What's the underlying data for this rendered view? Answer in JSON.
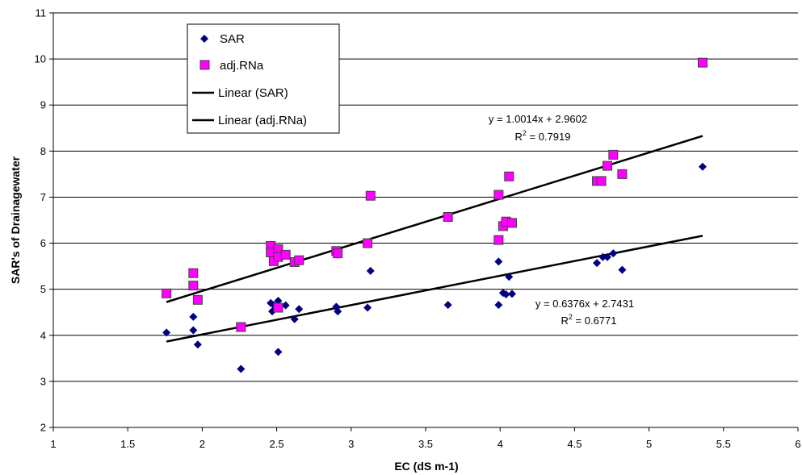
{
  "chart_data": {
    "type": "scatter",
    "title": "",
    "xlabel": "EC (dS m-1)",
    "ylabel": "SAR's of Drainagewater",
    "xlim": [
      1,
      6
    ],
    "ylim": [
      2,
      11
    ],
    "x_ticks": [
      "1",
      "1.5",
      "2",
      "2.5",
      "3",
      "3.5",
      "4",
      "4.5",
      "5",
      "5.5",
      "6"
    ],
    "y_ticks": [
      "2",
      "3",
      "4",
      "5",
      "6",
      "7",
      "8",
      "9",
      "10",
      "11"
    ],
    "grid": "horizontal",
    "legend_position": "top-left",
    "series": [
      {
        "name": "SAR",
        "marker": "diamond",
        "color": "#000080",
        "points": [
          [
            1.76,
            4.06
          ],
          [
            1.94,
            4.4
          ],
          [
            1.94,
            4.11
          ],
          [
            1.97,
            3.8
          ],
          [
            2.26,
            3.27
          ],
          [
            2.46,
            4.7
          ],
          [
            2.47,
            4.52
          ],
          [
            2.48,
            4.66
          ],
          [
            2.51,
            4.75
          ],
          [
            2.51,
            4.6
          ],
          [
            2.51,
            3.64
          ],
          [
            2.56,
            4.65
          ],
          [
            2.62,
            4.35
          ],
          [
            2.65,
            4.57
          ],
          [
            2.9,
            4.62
          ],
          [
            2.91,
            4.52
          ],
          [
            3.11,
            4.6
          ],
          [
            3.13,
            5.4
          ],
          [
            3.65,
            4.66
          ],
          [
            3.99,
            5.6
          ],
          [
            3.99,
            4.66
          ],
          [
            4.02,
            4.92
          ],
          [
            4.04,
            4.89
          ],
          [
            4.06,
            5.27
          ],
          [
            4.08,
            4.9
          ],
          [
            4.65,
            5.57
          ],
          [
            4.69,
            5.7
          ],
          [
            4.72,
            5.7
          ],
          [
            4.76,
            5.78
          ],
          [
            4.82,
            5.42
          ],
          [
            5.36,
            7.66
          ]
        ]
      },
      {
        "name": "adj.RNa",
        "marker": "square",
        "color": "#FF00FF",
        "points": [
          [
            1.76,
            4.91
          ],
          [
            1.94,
            5.35
          ],
          [
            1.94,
            5.08
          ],
          [
            1.97,
            4.77
          ],
          [
            2.26,
            4.18
          ],
          [
            2.46,
            5.94
          ],
          [
            2.46,
            5.8
          ],
          [
            2.48,
            5.61
          ],
          [
            2.51,
            5.87
          ],
          [
            2.51,
            5.7
          ],
          [
            2.51,
            4.6
          ],
          [
            2.56,
            5.75
          ],
          [
            2.62,
            5.59
          ],
          [
            2.65,
            5.63
          ],
          [
            2.9,
            5.83
          ],
          [
            2.91,
            5.78
          ],
          [
            3.11,
            6.0
          ],
          [
            3.13,
            7.03
          ],
          [
            3.65,
            6.57
          ],
          [
            3.99,
            7.05
          ],
          [
            3.99,
            6.07
          ],
          [
            4.02,
            6.37
          ],
          [
            4.04,
            6.47
          ],
          [
            4.06,
            7.45
          ],
          [
            4.08,
            6.44
          ],
          [
            4.65,
            7.35
          ],
          [
            4.68,
            7.35
          ],
          [
            4.72,
            7.68
          ],
          [
            4.76,
            7.92
          ],
          [
            4.82,
            7.5
          ],
          [
            5.36,
            9.92
          ]
        ]
      }
    ],
    "trendlines": [
      {
        "name": "Linear (SAR)",
        "slope": 0.6376,
        "intercept": 2.7431,
        "x_range": [
          1.76,
          5.36
        ],
        "equation": "y = 0.6376x + 2.7431",
        "r2_label": "R",
        "r2_sup": "2",
        "r2_value": " = 0.6771"
      },
      {
        "name": "Linear (adj.RNa)",
        "slope": 1.0014,
        "intercept": 2.9602,
        "x_range": [
          1.76,
          5.36
        ],
        "equation": "y = 1.0014x + 2.9602",
        "r2_label": "R",
        "r2_sup": "2",
        "r2_value": " = 0.7919"
      }
    ]
  }
}
